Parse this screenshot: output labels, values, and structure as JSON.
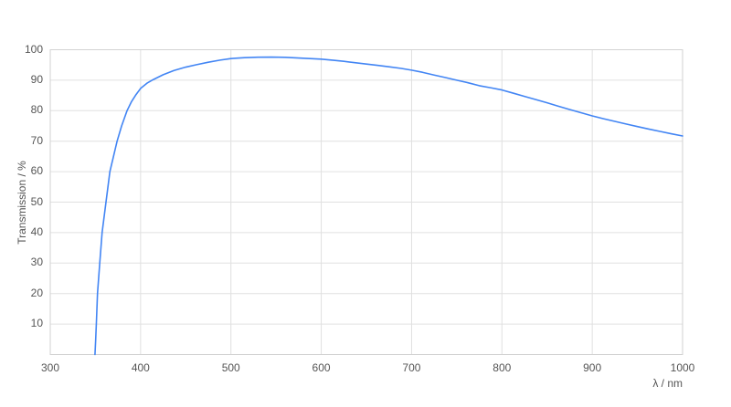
{
  "chart_data": {
    "type": "line",
    "title": "",
    "xlabel": "λ / nm",
    "ylabel": "Transmission / %",
    "xlim": [
      300,
      1000
    ],
    "ylim": [
      0,
      100
    ],
    "x_ticks": [
      300,
      400,
      500,
      600,
      700,
      800,
      900,
      1000
    ],
    "y_ticks": [
      10,
      20,
      30,
      40,
      50,
      60,
      70,
      80,
      90,
      100
    ],
    "grid": true,
    "legend": "none",
    "colors": {
      "line": "#4285f4",
      "grid": "#e0e0e0",
      "border": "#d2d2d2",
      "tick_text": "#555555",
      "background": "#ffffff"
    },
    "series": [
      {
        "name": "Transmission",
        "x": [
          349.5,
          350.3,
          351.0,
          352.3,
          354.8,
          357.4,
          361.7,
          366.0,
          370.0,
          374.0,
          379.0,
          385.0,
          390.0,
          395.0,
          400.0,
          407.0,
          414.0,
          425.0,
          437.0,
          450.0,
          462.0,
          475.0,
          488.0,
          500.0,
          515.0,
          530.0,
          545.0,
          560.0,
          575.0,
          600.0,
          615.0,
          625.0,
          650.0,
          662.0,
          675.0,
          688.0,
          700.0,
          712.0,
          725.0,
          737.0,
          750.0,
          762.0,
          775.0,
          788.0,
          800.0,
          812.0,
          825.0,
          838.0,
          850.0,
          862.0,
          875.0,
          888.0,
          900.0,
          912.0,
          925.0,
          938.0,
          950.0,
          962.0,
          975.0,
          988.0,
          1000.0
        ],
        "y": [
          0.0,
          5.0,
          10.0,
          20.0,
          30.0,
          40.0,
          50.0,
          60.0,
          65.0,
          70.0,
          75.0,
          80.0,
          83.0,
          85.3,
          87.3,
          89.0,
          90.2,
          91.8,
          93.2,
          94.3,
          95.1,
          95.9,
          96.6,
          97.1,
          97.4,
          97.55,
          97.6,
          97.5,
          97.3,
          96.9,
          96.5,
          96.2,
          95.3,
          94.9,
          94.4,
          93.9,
          93.3,
          92.6,
          91.7,
          90.9,
          90.0,
          89.2,
          88.2,
          87.5,
          86.8,
          85.8,
          84.7,
          83.6,
          82.6,
          81.5,
          80.4,
          79.3,
          78.3,
          77.4,
          76.5,
          75.6,
          74.8,
          74.0,
          73.2,
          72.4,
          71.7
        ]
      }
    ]
  }
}
